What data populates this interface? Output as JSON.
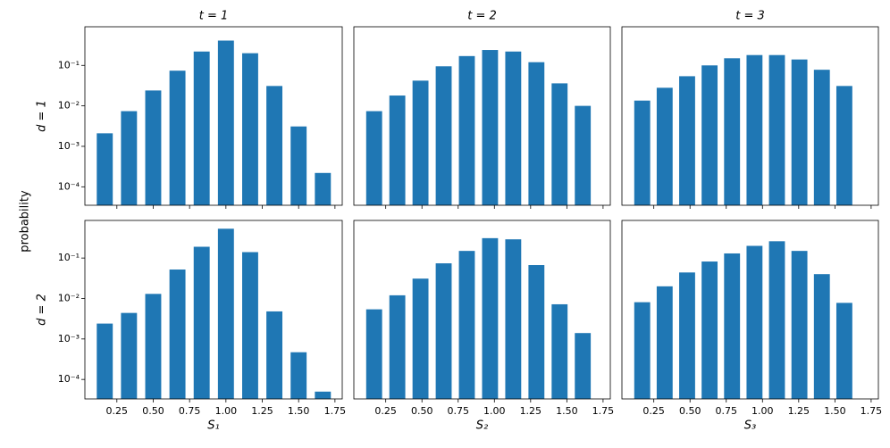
{
  "figure": {
    "ylabel": "probability"
  },
  "chart_data": [
    {
      "type": "bar",
      "title": "t = 1",
      "ylabel": "d = 1",
      "log_y": true,
      "color": "#1f77b4",
      "x": [
        0.1667,
        0.3333,
        0.5,
        0.6667,
        0.8333,
        1.0,
        1.1667,
        1.3333,
        1.5,
        1.6667
      ],
      "values": [
        0.0021,
        0.0074,
        0.024,
        0.074,
        0.22,
        0.41,
        0.2,
        0.031,
        0.0031,
        0.00022
      ],
      "xlim": [
        0.03,
        1.8
      ],
      "ylim": [
        3.5e-05,
        0.9
      ],
      "xticks": [
        0.25,
        0.5,
        0.75,
        1.0,
        1.25,
        1.5,
        1.75
      ],
      "yticks": [
        {
          "value": 0.0001,
          "label": "10⁻⁴"
        },
        {
          "value": 0.001,
          "label": "10⁻³"
        },
        {
          "value": 0.01,
          "label": "10⁻²"
        },
        {
          "value": 0.1,
          "label": "10⁻¹"
        }
      ]
    },
    {
      "type": "bar",
      "title": "t = 2",
      "log_y": true,
      "color": "#1f77b4",
      "x": [
        0.17,
        0.33,
        0.49,
        0.65,
        0.81,
        0.97,
        1.13,
        1.29,
        1.45,
        1.61
      ],
      "values": [
        0.0074,
        0.018,
        0.042,
        0.095,
        0.17,
        0.24,
        0.22,
        0.12,
        0.036,
        0.01
      ],
      "xlim": [
        0.03,
        1.8
      ],
      "ylim": [
        3.5e-05,
        0.9
      ],
      "xticks": [
        0.25,
        0.5,
        0.75,
        1.0,
        1.25,
        1.5,
        1.75
      ]
    },
    {
      "type": "bar",
      "title": "t = 3",
      "log_y": true,
      "color": "#1f77b4",
      "x": [
        0.17,
        0.325,
        0.48,
        0.635,
        0.79,
        0.945,
        1.1,
        1.255,
        1.41,
        1.565
      ],
      "values": [
        0.0135,
        0.028,
        0.054,
        0.1,
        0.15,
        0.18,
        0.18,
        0.14,
        0.078,
        0.031
      ],
      "xlim": [
        0.03,
        1.8
      ],
      "ylim": [
        3.5e-05,
        0.9
      ],
      "xticks": [
        0.25,
        0.5,
        0.75,
        1.0,
        1.25,
        1.5,
        1.75
      ]
    },
    {
      "type": "bar",
      "ylabel": "d = 2",
      "xlabel": "S₁",
      "log_y": true,
      "color": "#1f77b4",
      "x": [
        0.1667,
        0.3333,
        0.5,
        0.6667,
        0.8333,
        1.0,
        1.1667,
        1.3333,
        1.5,
        1.6667
      ],
      "values": [
        0.0024,
        0.0044,
        0.013,
        0.052,
        0.19,
        0.53,
        0.14,
        0.0048,
        0.00047,
        5e-05
      ],
      "xlim": [
        0.03,
        1.8
      ],
      "ylim": [
        3.3e-05,
        0.85
      ],
      "xticks": [
        0.25,
        {
          "value": 0.5,
          "label": "0.50"
        },
        0.75,
        {
          "value": 1.0,
          "label": "1.00"
        },
        1.25,
        {
          "value": 1.5,
          "label": "1.50"
        },
        1.75
      ],
      "yticks": [
        {
          "value": 0.0001,
          "label": "10⁻⁴"
        },
        {
          "value": 0.001,
          "label": "10⁻³"
        },
        {
          "value": 0.01,
          "label": "10⁻²"
        },
        {
          "value": 0.1,
          "label": "10⁻¹"
        }
      ]
    },
    {
      "type": "bar",
      "xlabel": "S₂",
      "log_y": true,
      "color": "#1f77b4",
      "x": [
        0.17,
        0.33,
        0.49,
        0.65,
        0.81,
        0.97,
        1.13,
        1.29,
        1.45,
        1.61
      ],
      "values": [
        0.0054,
        0.012,
        0.031,
        0.074,
        0.15,
        0.31,
        0.29,
        0.067,
        0.0072,
        0.0014
      ],
      "xlim": [
        0.03,
        1.8
      ],
      "ylim": [
        3.3e-05,
        0.85
      ],
      "xticks": [
        0.25,
        {
          "value": 0.5,
          "label": "0.50"
        },
        0.75,
        {
          "value": 1.0,
          "label": "1.00"
        },
        1.25,
        {
          "value": 1.5,
          "label": "1.50"
        },
        1.75
      ]
    },
    {
      "type": "bar",
      "xlabel": "S₃",
      "log_y": true,
      "color": "#1f77b4",
      "x": [
        0.17,
        0.325,
        0.48,
        0.635,
        0.79,
        0.945,
        1.1,
        1.255,
        1.41,
        1.565
      ],
      "values": [
        0.0081,
        0.02,
        0.044,
        0.082,
        0.13,
        0.2,
        0.26,
        0.15,
        0.04,
        0.0078
      ],
      "xlim": [
        0.03,
        1.8
      ],
      "ylim": [
        3.3e-05,
        0.85
      ],
      "xticks": [
        0.25,
        {
          "value": 0.5,
          "label": "0.50"
        },
        0.75,
        {
          "value": 1.0,
          "label": "1.00"
        },
        1.25,
        {
          "value": 1.5,
          "label": "1.50"
        },
        1.75
      ]
    }
  ]
}
